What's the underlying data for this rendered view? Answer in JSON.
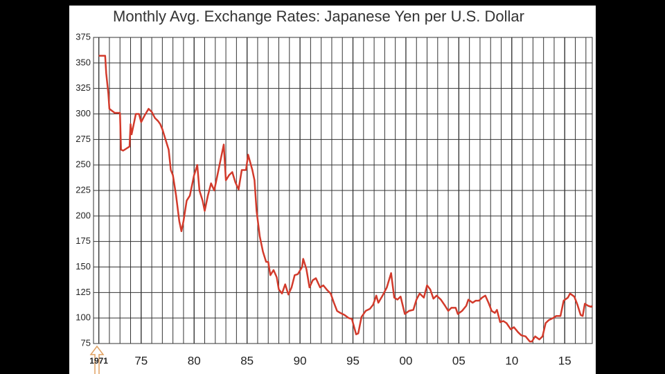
{
  "chart_data": {
    "type": "line",
    "title": "Monthly Avg. Exchange Rates: Japanese Yen per U.S. Dollar",
    "color": "#d23a2b",
    "grid": true,
    "xlim": [
      1970.5,
      2017.6
    ],
    "ylim": [
      75,
      375
    ],
    "yticks": [
      75,
      100,
      125,
      150,
      175,
      200,
      225,
      250,
      275,
      300,
      325,
      350,
      375
    ],
    "xticks": [
      {
        "value": 1971,
        "label": "1971"
      },
      {
        "value": 1975,
        "label": "75"
      },
      {
        "value": 1980,
        "label": "80"
      },
      {
        "value": 1985,
        "label": "85"
      },
      {
        "value": 1990,
        "label": "90"
      },
      {
        "value": 1995,
        "label": "95"
      },
      {
        "value": 2000,
        "label": "00"
      },
      {
        "value": 2005,
        "label": "05"
      },
      {
        "value": 2010,
        "label": "10"
      },
      {
        "value": 2015,
        "label": "15"
      }
    ],
    "xminor": [
      1971,
      1972,
      1973,
      1974,
      1975,
      1976,
      1977,
      1978,
      1979,
      1980,
      1981,
      1982,
      1983,
      1984,
      1985,
      1986,
      1987,
      1988,
      1989,
      1990,
      1991,
      1992,
      1993,
      1994,
      1995,
      1996,
      1997,
      1998,
      1999,
      2000,
      2001,
      2002,
      2003,
      2004,
      2005,
      2006,
      2007,
      2008,
      2009,
      2010,
      2011,
      2012,
      2013,
      2014,
      2015,
      2016,
      2017
    ],
    "x": [
      1971.0,
      1971.6,
      1971.7,
      1971.9,
      1972.0,
      1972.5,
      1973.0,
      1973.1,
      1973.3,
      1973.9,
      1974.0,
      1974.1,
      1974.5,
      1974.8,
      1975.0,
      1975.3,
      1975.7,
      1976.0,
      1976.3,
      1976.6,
      1976.8,
      1977.0,
      1977.3,
      1977.6,
      1977.8,
      1978.0,
      1978.3,
      1978.6,
      1978.8,
      1979.0,
      1979.3,
      1979.6,
      1980.0,
      1980.3,
      1980.5,
      1980.8,
      1981.0,
      1981.3,
      1981.6,
      1981.9,
      1982.3,
      1982.8,
      1983.0,
      1983.3,
      1983.6,
      1983.9,
      1984.2,
      1984.5,
      1984.9,
      1985.1,
      1985.5,
      1985.7,
      1985.9,
      1986.2,
      1986.5,
      1986.8,
      1987.0,
      1987.2,
      1987.5,
      1987.8,
      1988.0,
      1988.3,
      1988.6,
      1988.9,
      1989.2,
      1989.5,
      1989.8,
      1990.2,
      1990.3,
      1990.6,
      1990.9,
      1991.2,
      1991.5,
      1991.9,
      1992.2,
      1992.6,
      1992.9,
      1993.2,
      1993.5,
      1993.8,
      1994.2,
      1994.6,
      1994.9,
      1995.3,
      1995.5,
      1995.8,
      1996.2,
      1996.6,
      1996.9,
      1997.2,
      1997.4,
      1997.8,
      1998.2,
      1998.6,
      1998.9,
      1999.2,
      1999.5,
      1999.9,
      2000.3,
      2000.7,
      2001.0,
      2001.3,
      2001.7,
      2002.0,
      2002.3,
      2002.6,
      2002.9,
      2003.3,
      2003.7,
      2004.0,
      2004.3,
      2004.7,
      2004.9,
      2005.3,
      2005.7,
      2005.9,
      2006.3,
      2006.6,
      2006.9,
      2007.2,
      2007.5,
      2007.8,
      2008.1,
      2008.4,
      2008.6,
      2008.9,
      2009.2,
      2009.5,
      2009.9,
      2010.2,
      2010.6,
      2010.9,
      2011.3,
      2011.7,
      2011.9,
      2012.2,
      2012.6,
      2012.9,
      2013.2,
      2013.5,
      2013.9,
      2014.2,
      2014.6,
      2014.9,
      2015.3,
      2015.5,
      2015.9,
      2016.2,
      2016.5,
      2016.7,
      2016.9,
      2017.2,
      2017.5,
      2017.6
    ],
    "values": [
      357,
      357,
      340,
      320,
      305,
      301,
      301,
      265,
      264,
      268,
      290,
      280,
      300,
      300,
      292,
      298,
      305,
      302,
      296,
      293,
      290,
      285,
      275,
      265,
      245,
      240,
      220,
      195,
      185,
      195,
      215,
      220,
      240,
      250,
      225,
      215,
      205,
      220,
      232,
      225,
      245,
      270,
      235,
      240,
      243,
      233,
      226,
      245,
      245,
      260,
      245,
      235,
      205,
      180,
      165,
      155,
      155,
      142,
      147,
      140,
      128,
      124,
      133,
      123,
      130,
      142,
      143,
      150,
      158,
      148,
      130,
      137,
      139,
      130,
      132,
      127,
      124,
      115,
      107,
      105,
      103,
      100,
      99,
      84,
      85,
      101,
      107,
      109,
      113,
      122,
      115,
      122,
      130,
      144,
      120,
      118,
      121,
      104,
      107,
      108,
      118,
      124,
      120,
      132,
      128,
      119,
      122,
      118,
      112,
      107,
      110,
      110,
      104,
      107,
      112,
      118,
      115,
      117,
      117,
      120,
      122,
      115,
      107,
      105,
      108,
      96,
      97,
      95,
      89,
      91,
      86,
      83,
      82,
      77,
      77,
      82,
      79,
      82,
      95,
      98,
      100,
      102,
      102,
      117,
      120,
      124,
      121,
      113,
      103,
      102,
      114,
      112,
      111,
      112
    ]
  }
}
